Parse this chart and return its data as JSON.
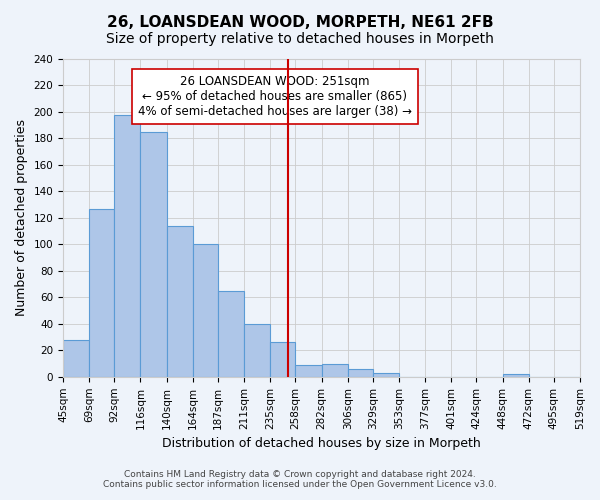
{
  "title": "26, LOANSDEAN WOOD, MORPETH, NE61 2FB",
  "subtitle": "Size of property relative to detached houses in Morpeth",
  "xlabel": "Distribution of detached houses by size in Morpeth",
  "ylabel": "Number of detached properties",
  "bar_edges": [
    45,
    69,
    92,
    116,
    140,
    164,
    187,
    211,
    235,
    258,
    282,
    306,
    329,
    353,
    377,
    401,
    424,
    448,
    472,
    495,
    519
  ],
  "bar_heights": [
    28,
    127,
    198,
    185,
    114,
    100,
    65,
    40,
    26,
    9,
    10,
    6,
    3,
    0,
    0,
    0,
    0,
    2,
    0,
    0
  ],
  "bar_color": "#aec6e8",
  "bar_edge_color": "#5b9bd5",
  "property_value": 251,
  "red_line_color": "#cc0000",
  "annotation_box_edge_color": "#cc0000",
  "annotation_text_line1": "26 LOANSDEAN WOOD: 251sqm",
  "annotation_text_line2": "← 95% of detached houses are smaller (865)",
  "annotation_text_line3": "4% of semi-detached houses are larger (38) →",
  "tick_labels": [
    "45sqm",
    "69sqm",
    "92sqm",
    "116sqm",
    "140sqm",
    "164sqm",
    "187sqm",
    "211sqm",
    "235sqm",
    "258sqm",
    "282sqm",
    "306sqm",
    "329sqm",
    "353sqm",
    "377sqm",
    "401sqm",
    "424sqm",
    "448sqm",
    "472sqm",
    "495sqm",
    "519sqm"
  ],
  "ylim": [
    0,
    240
  ],
  "yticks": [
    0,
    20,
    40,
    60,
    80,
    100,
    120,
    140,
    160,
    180,
    200,
    220,
    240
  ],
  "footer_line1": "Contains HM Land Registry data © Crown copyright and database right 2024.",
  "footer_line2": "Contains public sector information licensed under the Open Government Licence v3.0.",
  "bg_color": "#eef3fa",
  "grid_color": "#cccccc",
  "title_fontsize": 11,
  "subtitle_fontsize": 10,
  "axis_label_fontsize": 9,
  "tick_fontsize": 7.5,
  "annotation_fontsize": 8.5,
  "footer_fontsize": 6.5
}
